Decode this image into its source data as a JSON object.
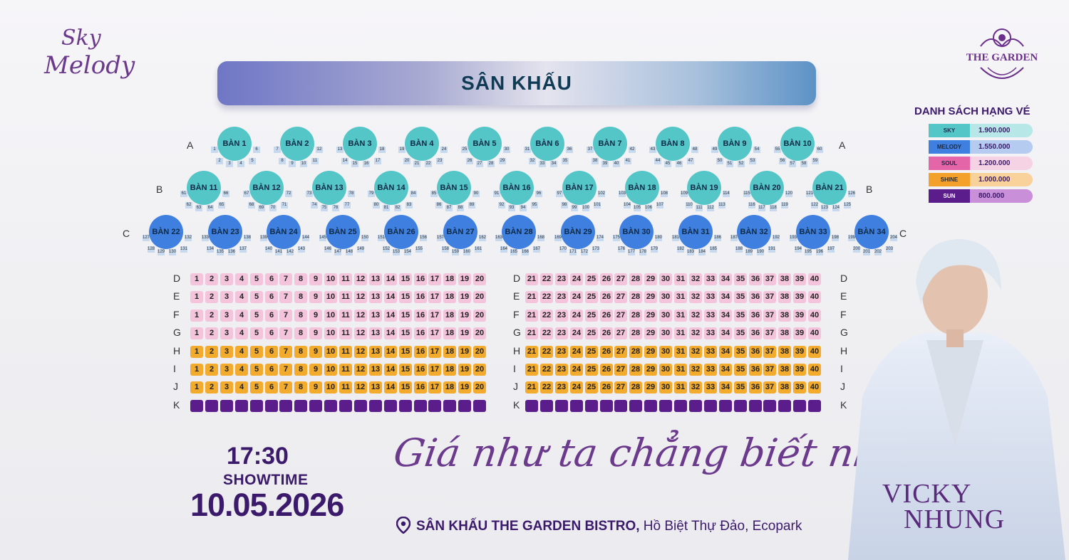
{
  "logos": {
    "left_line1": "Sky",
    "left_line2": "Melody",
    "right": "THE GARDEN"
  },
  "stage": {
    "label": "SÂN KHẤU"
  },
  "legend": {
    "title": "DANH SÁCH HẠNG VÉ",
    "items": [
      {
        "name": "SKY",
        "price": "1.900.000",
        "color": "#55c6c7",
        "bg": "#b7e7e6"
      },
      {
        "name": "MELODY",
        "price": "1.550.000",
        "color": "#3f7fe0",
        "bg": "#b5cbef"
      },
      {
        "name": "SOUL",
        "price": "1.200.000",
        "color": "#e566a8",
        "bg": "#f6d3e4"
      },
      {
        "name": "SHINE",
        "price": "1.000.000",
        "color": "#f3a12a",
        "bg": "#f8d19b"
      },
      {
        "name": "SUN",
        "price": "800.000",
        "color": "#5b1d8c",
        "bg": "#c98fd8"
      }
    ]
  },
  "tables": {
    "rowA": {
      "label": "A",
      "tables": [
        "BÀN 1",
        "BÀN 2",
        "BÀN 3",
        "BÀN 4",
        "BÀN 5",
        "BÀN 6",
        "BÀN 7",
        "BÀN 8",
        "BÀN 9",
        "BÀN 10"
      ]
    },
    "rowB": {
      "label": "B",
      "tables": [
        "BÀN 11",
        "BÀN 12",
        "BÀN 13",
        "BÀN 14",
        "BÀN 15",
        "BÀN 16",
        "BÀN 17",
        "BÀN 18",
        "BÀN 19",
        "BÀN 20",
        "BÀN 21"
      ]
    },
    "rowC": {
      "label": "C",
      "tables": [
        "BÀN 22",
        "BÀN 23",
        "BÀN 24",
        "BÀN 25",
        "BÀN 26",
        "BÀN 27",
        "BÀN 28",
        "BÀN 29",
        "BÀN 30",
        "BÀN 31",
        "BÀN 32",
        "BÀN 33",
        "BÀN 34"
      ]
    }
  },
  "seat_rows": [
    {
      "label": "D",
      "tier": "soul"
    },
    {
      "label": "E",
      "tier": "soul"
    },
    {
      "label": "F",
      "tier": "soul"
    },
    {
      "label": "G",
      "tier": "soul"
    },
    {
      "label": "H",
      "tier": "shine"
    },
    {
      "label": "I",
      "tier": "shine"
    },
    {
      "label": "J",
      "tier": "shine"
    },
    {
      "label": "K",
      "tier": "sun"
    }
  ],
  "seats_per_row": 40,
  "event": {
    "time": "17:30",
    "showtime_label": "SHOWTIME",
    "date": "10.05.2026",
    "song_title": "Giá như ta chẳng biết nhau",
    "venue_bold": "SÂN KHẤU THE GARDEN BISTRO,",
    "venue_rest": " Hồ Biệt Thự Đảo, Ecopark",
    "artist_line1": "VICKY",
    "artist_line2": "NHUNG"
  }
}
